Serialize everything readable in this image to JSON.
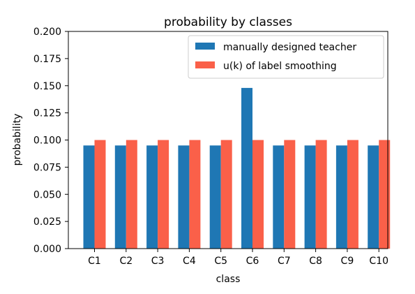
{
  "chart_data": {
    "type": "bar",
    "title": "probability by classes",
    "xlabel": "class",
    "ylabel": "probability",
    "categories": [
      "C1",
      "C2",
      "C3",
      "C4",
      "C5",
      "C6",
      "C7",
      "C8",
      "C9",
      "C10"
    ],
    "series": [
      {
        "name": "manually designed teacher",
        "color": "#1f77b4",
        "values": [
          0.095,
          0.095,
          0.095,
          0.095,
          0.095,
          0.148,
          0.095,
          0.095,
          0.095,
          0.095
        ]
      },
      {
        "name": "u(k) of label smoothing",
        "color": "#fa6049",
        "values": [
          0.1,
          0.1,
          0.1,
          0.1,
          0.1,
          0.1,
          0.1,
          0.1,
          0.1,
          0.1
        ]
      }
    ],
    "ylim": [
      0,
      0.2
    ],
    "yticks": [
      "0.000",
      "0.025",
      "0.050",
      "0.075",
      "0.100",
      "0.125",
      "0.150",
      "0.175",
      "0.200"
    ],
    "grid": false,
    "legend_position": "top-right"
  }
}
